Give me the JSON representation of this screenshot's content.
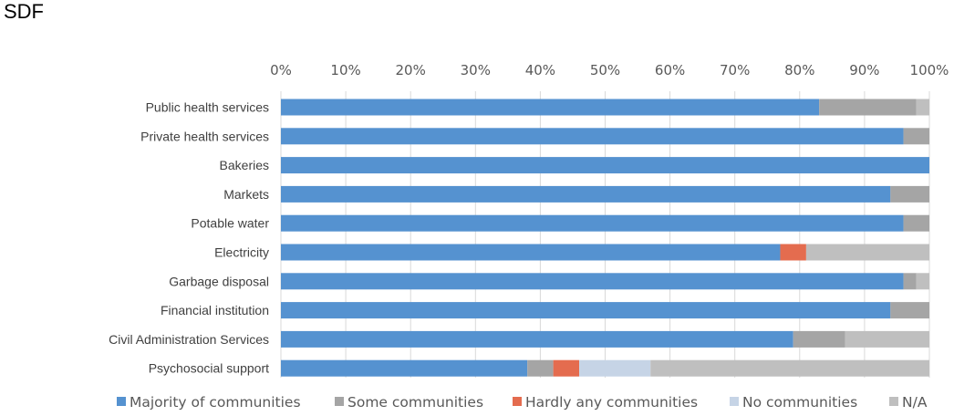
{
  "chart_data": {
    "type": "bar",
    "orientation": "horizontal",
    "stacked": "percent",
    "title": "SDF",
    "xlim": [
      0,
      100
    ],
    "x_ticks": [
      "0%",
      "10%",
      "20%",
      "30%",
      "40%",
      "50%",
      "60%",
      "70%",
      "80%",
      "90%",
      "100%"
    ],
    "x_axis_position": "top",
    "grid": true,
    "legend_position": "bottom",
    "categories": [
      "Public health services",
      "Private health services",
      "Bakeries",
      "Markets",
      "Potable water",
      "Electricity",
      "Garbage disposal",
      "Financial institution",
      "Civil Administration Services",
      "Psychosocial support"
    ],
    "series": [
      {
        "name": "Majority of communities",
        "color": "#5592d0",
        "values": [
          83,
          96,
          100,
          94,
          96,
          77,
          96,
          94,
          79,
          38
        ]
      },
      {
        "name": "Some communities",
        "color": "#a5a5a5",
        "values": [
          15,
          4,
          0,
          6,
          4,
          0,
          2,
          6,
          8,
          4
        ]
      },
      {
        "name": "Hardly any communities",
        "color": "#e46c4f",
        "values": [
          0,
          0,
          0,
          0,
          0,
          4,
          0,
          0,
          0,
          4
        ]
      },
      {
        "name": "No communities",
        "color": "#c6d4e6",
        "values": [
          0,
          0,
          0,
          0,
          0,
          0,
          0,
          0,
          0,
          11
        ]
      },
      {
        "name": "N/A",
        "color": "#bfbfbf",
        "values": [
          2,
          0,
          0,
          0,
          0,
          19,
          2,
          0,
          13,
          43
        ]
      }
    ]
  }
}
